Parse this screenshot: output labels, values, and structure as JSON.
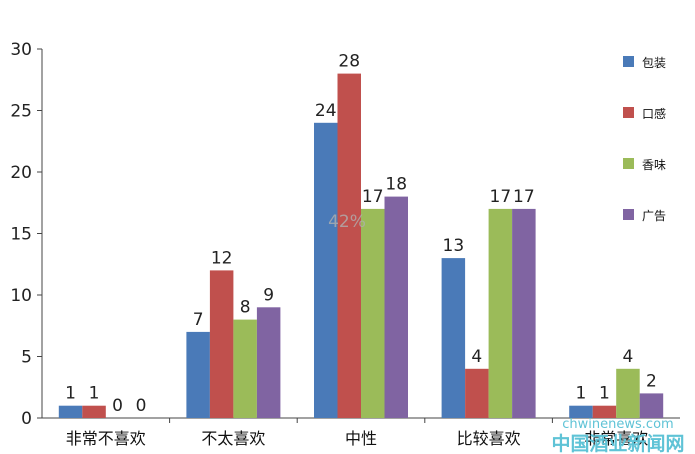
{
  "chart_data": {
    "type": "bar",
    "categories": [
      "非常不喜欢",
      "不太喜欢",
      "中性",
      "比较喜欢",
      "非常喜欢"
    ],
    "series": [
      {
        "name": "包装",
        "color": "#4a7ab8",
        "values": [
          1,
          7,
          24,
          13,
          1
        ]
      },
      {
        "name": "口感",
        "color": "#c0504d",
        "values": [
          1,
          12,
          28,
          4,
          1
        ]
      },
      {
        "name": "香味",
        "color": "#9bbb59",
        "values": [
          0,
          8,
          17,
          17,
          4
        ]
      },
      {
        "name": "广告",
        "color": "#8064a2",
        "values": [
          0,
          9,
          18,
          17,
          2
        ]
      }
    ],
    "ylim": [
      0,
      30
    ],
    "yticks": [
      0,
      5,
      10,
      15,
      20,
      25,
      30
    ],
    "grid": false,
    "legend_position": "right",
    "annotation": "42%"
  },
  "watermark": {
    "url": "chwinenews.com",
    "name": "中国酒业新闻网",
    "color": "#5fc3d6"
  }
}
